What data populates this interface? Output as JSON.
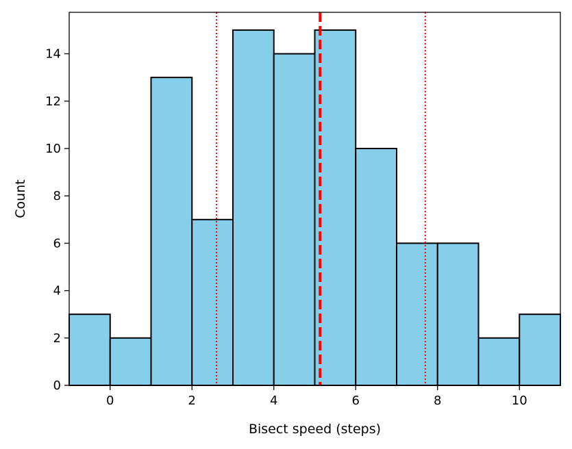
{
  "chart_data": {
    "type": "bar",
    "title": "",
    "xlabel": "Bisect speed (steps)",
    "ylabel": "Count",
    "xlim": [
      -1,
      11
    ],
    "ylim": [
      0,
      15.75
    ],
    "bins": [
      {
        "start": -1,
        "end": 0,
        "count": 3
      },
      {
        "start": 0,
        "end": 1,
        "count": 2
      },
      {
        "start": 1,
        "end": 2,
        "count": 13
      },
      {
        "start": 2,
        "end": 3,
        "count": 7
      },
      {
        "start": 3,
        "end": 4,
        "count": 15
      },
      {
        "start": 4,
        "end": 5,
        "count": 14
      },
      {
        "start": 5,
        "end": 6,
        "count": 15
      },
      {
        "start": 6,
        "end": 7,
        "count": 10
      },
      {
        "start": 7,
        "end": 8,
        "count": 6
      },
      {
        "start": 8,
        "end": 9,
        "count": 6
      },
      {
        "start": 9,
        "end": 10,
        "count": 2
      },
      {
        "start": 10,
        "end": 11,
        "count": 3
      }
    ],
    "x_ticks": [
      0,
      2,
      4,
      6,
      8,
      10
    ],
    "y_ticks": [
      0,
      2,
      4,
      6,
      8,
      10,
      12,
      14
    ],
    "reference_lines": [
      {
        "x": 5.13,
        "style": "dashed"
      },
      {
        "x": 2.6,
        "style": "dotted"
      },
      {
        "x": 7.7,
        "style": "dotted"
      }
    ],
    "grid": false,
    "legend": "none",
    "colors": {
      "bar_fill": "#87ceeb",
      "bar_edge": "#000000",
      "reference_line": "#ff0000"
    }
  }
}
